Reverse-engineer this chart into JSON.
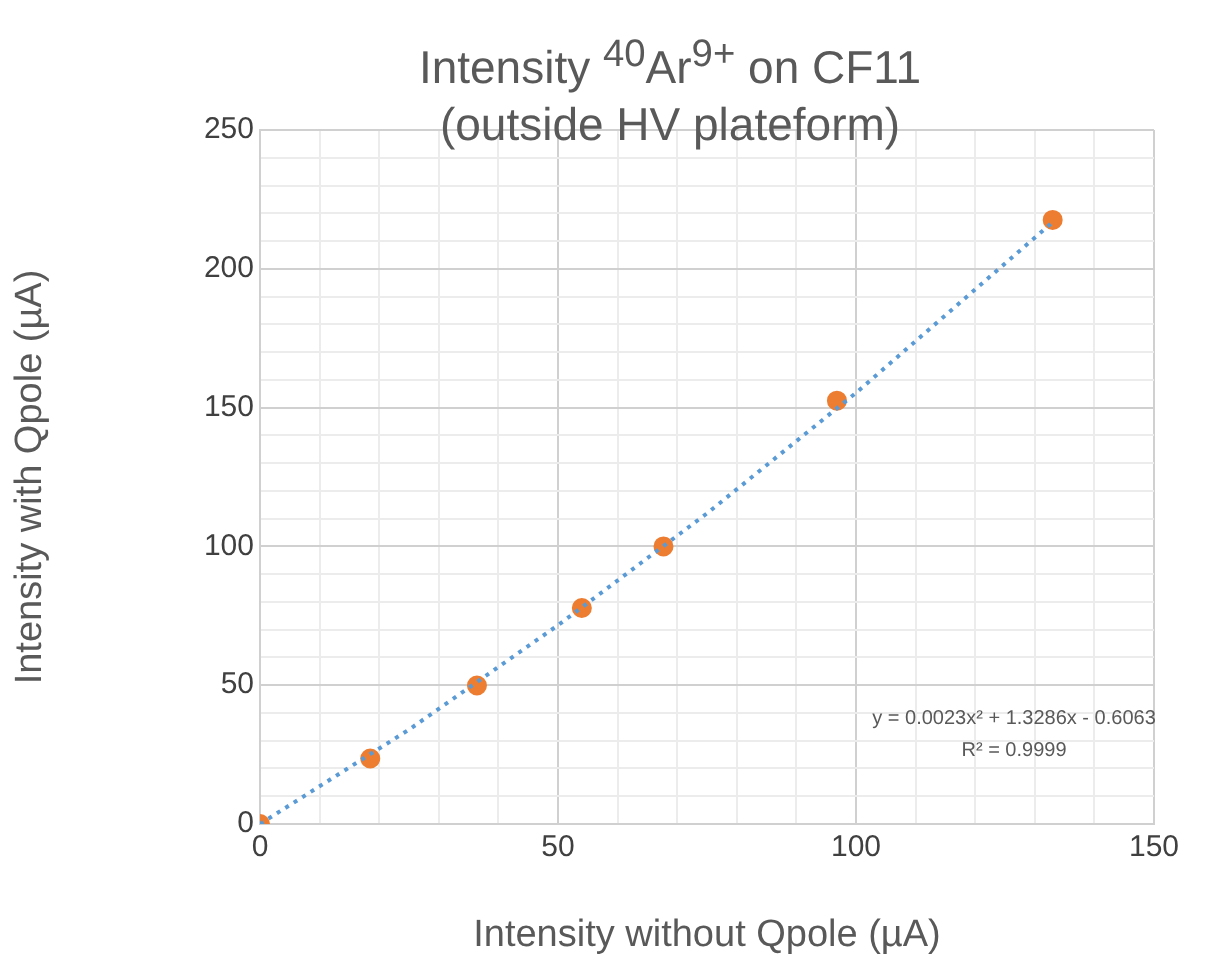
{
  "chart_data": {
    "type": "scatter",
    "title": "Intensity $^{40}$Ar$^{9+}$ on CF11 (outside HV plateform)",
    "xlabel": "Intensity without Qpole (µA)",
    "ylabel": "Intensity with Qpole (µA)",
    "series": [
      {
        "color": "#ed7d31",
        "marker": "circle",
        "x": [
          0,
          18.5,
          36.4,
          54,
          67.7,
          96.8,
          133
        ],
        "values": [
          0,
          23.6,
          49.9,
          77.8,
          100,
          152.5,
          217.6
        ]
      },
      {
        "type": "line",
        "marker": "none",
        "color": "#5b9bd5",
        "x": [
          0,
          25,
          50,
          75,
          100,
          133
        ],
        "values": [
          0,
          34,
          71.6,
          111.9,
          155.3,
          216.8
        ]
      }
    ],
    "annotations": [
      "y = 0.0023x² + 1.3286x - 0.6063",
      "R² = 0.9999"
    ],
    "xlim": [
      0,
      150
    ],
    "ylim": [
      0,
      250
    ],
    "xticks": [
      0,
      {
        "value": 10,
        "label": null
      },
      {
        "value": 20,
        "label": null
      },
      {
        "value": 30,
        "label": null
      },
      {
        "value": 40,
        "label": null
      },
      50,
      {
        "value": 60,
        "label": null
      },
      {
        "value": 70,
        "label": null
      },
      {
        "value": 80,
        "label": null
      },
      {
        "value": 90,
        "label": null
      },
      100,
      {
        "value": 110,
        "label": null
      },
      {
        "value": 120,
        "label": null
      },
      {
        "value": 130,
        "label": null
      },
      {
        "value": 140,
        "label": null
      },
      150
    ],
    "yticks": [
      0,
      {
        "value": 10,
        "label": null
      },
      {
        "value": 20,
        "label": null
      },
      {
        "value": 30,
        "label": null
      },
      {
        "value": 40,
        "label": null
      },
      50,
      {
        "value": 60,
        "label": null
      },
      {
        "value": 70,
        "label": null
      },
      {
        "value": 80,
        "label": null
      },
      {
        "value": 90,
        "label": null
      },
      100,
      {
        "value": 110,
        "label": null
      },
      {
        "value": 120,
        "label": null
      },
      {
        "value": 130,
        "label": null
      },
      {
        "value": 140,
        "label": null
      },
      150,
      {
        "value": 160,
        "label": null
      },
      {
        "value": 170,
        "label": null
      },
      {
        "value": 180,
        "label": null
      },
      {
        "value": 190,
        "label": null
      },
      200,
      {
        "value": 210,
        "label": null
      },
      {
        "value": 220,
        "label": null
      },
      {
        "value": 230,
        "label": null
      },
      {
        "value": 240,
        "label": null
      },
      250
    ],
    "grid": true,
    "legend": false,
    "line_style": "dotted"
  }
}
